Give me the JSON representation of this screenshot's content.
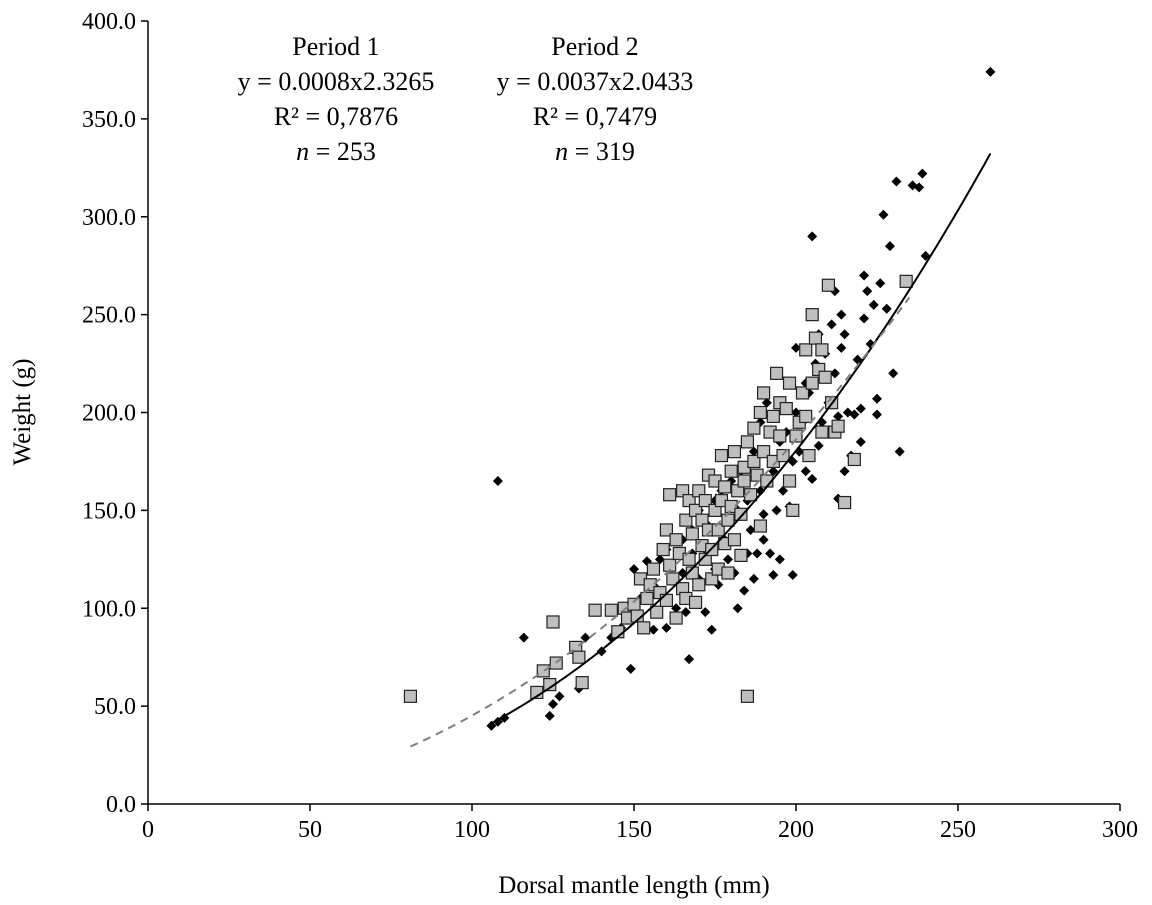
{
  "chart_data": {
    "type": "scatter",
    "title": "",
    "xlabel": "Dorsal mantle length (mm)",
    "ylabel": "Weight (g)",
    "xlim": [
      0,
      300
    ],
    "ylim": [
      0,
      400
    ],
    "x_ticks": [
      "0",
      "50",
      "100",
      "150",
      "200",
      "250",
      "300"
    ],
    "y_ticks": [
      "0.0",
      "50.0",
      "100.0",
      "150.0",
      "200.0",
      "250.0",
      "300.0",
      "350.0",
      "400.0"
    ],
    "grid": false,
    "legend": "none",
    "annotations": [
      {
        "id": "period1",
        "lines": [
          "Period 1",
          "y = 0.0008x2.3265",
          "R² = 0,7876",
          "n = 253"
        ]
      },
      {
        "id": "period2",
        "lines": [
          "Period 2",
          "y = 0.0037x2.0433",
          "R² = 0,7479",
          "n = 319"
        ]
      }
    ],
    "series": [
      {
        "marker": "diamond",
        "color": "#000000",
        "trend": {
          "a": 0.0008,
          "b": 2.3265,
          "x_range": [
            106,
            260
          ],
          "style": "solid",
          "color": "#000000"
        },
        "points": [
          [
            108,
            165
          ],
          [
            106,
            40
          ],
          [
            108,
            42
          ],
          [
            110,
            44
          ],
          [
            116,
            85
          ],
          [
            124,
            45
          ],
          [
            125,
            51
          ],
          [
            127,
            55
          ],
          [
            133,
            59
          ],
          [
            135,
            85
          ],
          [
            140,
            78
          ],
          [
            143,
            85
          ],
          [
            146,
            90
          ],
          [
            148,
            95
          ],
          [
            149,
            69
          ],
          [
            150,
            120
          ],
          [
            152,
            105
          ],
          [
            154,
            124
          ],
          [
            156,
            89
          ],
          [
            157,
            110
          ],
          [
            158,
            125
          ],
          [
            160,
            90
          ],
          [
            160,
            130
          ],
          [
            162,
            115
          ],
          [
            163,
            100
          ],
          [
            165,
            118
          ],
          [
            165,
            135
          ],
          [
            166,
            98
          ],
          [
            167,
            74
          ],
          [
            168,
            128
          ],
          [
            168,
            140
          ],
          [
            170,
            115
          ],
          [
            170,
            150
          ],
          [
            172,
            130
          ],
          [
            172,
            98
          ],
          [
            173,
            142
          ],
          [
            174,
            89
          ],
          [
            175,
            120
          ],
          [
            175,
            155
          ],
          [
            176,
            112
          ],
          [
            177,
            160
          ],
          [
            178,
            135
          ],
          [
            179,
            125
          ],
          [
            180,
            145
          ],
          [
            180,
            165
          ],
          [
            181,
            118
          ],
          [
            182,
            100
          ],
          [
            182,
            150
          ],
          [
            183,
            170
          ],
          [
            184,
            109
          ],
          [
            185,
            128
          ],
          [
            185,
            155
          ],
          [
            186,
            140
          ],
          [
            187,
            115
          ],
          [
            187,
            180
          ],
          [
            188,
            128
          ],
          [
            189,
            160
          ],
          [
            189,
            195
          ],
          [
            190,
            148
          ],
          [
            190,
            135
          ],
          [
            191,
            205
          ],
          [
            192,
            128
          ],
          [
            193,
            170
          ],
          [
            193,
            117
          ],
          [
            194,
            150
          ],
          [
            195,
            185
          ],
          [
            195,
            125
          ],
          [
            196,
            160
          ],
          [
            197,
            190
          ],
          [
            198,
            152
          ],
          [
            199,
            117
          ],
          [
            199,
            175
          ],
          [
            200,
            200
          ],
          [
            200,
            233
          ],
          [
            201,
            180
          ],
          [
            202,
            195
          ],
          [
            203,
            170
          ],
          [
            203,
            215
          ],
          [
            204,
            210
          ],
          [
            205,
            166
          ],
          [
            205,
            290
          ],
          [
            206,
            225
          ],
          [
            207,
            240
          ],
          [
            207,
            183
          ],
          [
            208,
            195
          ],
          [
            209,
            230
          ],
          [
            210,
            205
          ],
          [
            211,
            245
          ],
          [
            212,
            220
          ],
          [
            212,
            262
          ],
          [
            213,
            156
          ],
          [
            213,
            198
          ],
          [
            214,
            250
          ],
          [
            214,
            233
          ],
          [
            215,
            240
          ],
          [
            215,
            170
          ],
          [
            216,
            200
          ],
          [
            217,
            178
          ],
          [
            218,
            199
          ],
          [
            219,
            227
          ],
          [
            220,
            185
          ],
          [
            220,
            202
          ],
          [
            221,
            270
          ],
          [
            221,
            248
          ],
          [
            222,
            262
          ],
          [
            223,
            235
          ],
          [
            224,
            255
          ],
          [
            225,
            207
          ],
          [
            225,
            199
          ],
          [
            226,
            266
          ],
          [
            227,
            301
          ],
          [
            228,
            253
          ],
          [
            229,
            285
          ],
          [
            230,
            220
          ],
          [
            231,
            318
          ],
          [
            232,
            180
          ],
          [
            236,
            316
          ],
          [
            238,
            315
          ],
          [
            239,
            322
          ],
          [
            240,
            280
          ],
          [
            260,
            374
          ]
        ]
      },
      {
        "marker": "square",
        "color": "#bfbfbf",
        "trend": {
          "a": 0.0037,
          "b": 2.0433,
          "x_range": [
            81,
            235
          ],
          "style": "dashed",
          "color": "#7f7f7f"
        },
        "points": [
          [
            81,
            55
          ],
          [
            120,
            57
          ],
          [
            122,
            68
          ],
          [
            124,
            61
          ],
          [
            125,
            93
          ],
          [
            126,
            72
          ],
          [
            132,
            80
          ],
          [
            133,
            75
          ],
          [
            134,
            62
          ],
          [
            138,
            99
          ],
          [
            143,
            99
          ],
          [
            145,
            88
          ],
          [
            147,
            100
          ],
          [
            148,
            95
          ],
          [
            150,
            102
          ],
          [
            151,
            96
          ],
          [
            152,
            115
          ],
          [
            153,
            90
          ],
          [
            154,
            105
          ],
          [
            155,
            112
          ],
          [
            156,
            120
          ],
          [
            157,
            98
          ],
          [
            158,
            108
          ],
          [
            159,
            130
          ],
          [
            160,
            140
          ],
          [
            160,
            104
          ],
          [
            161,
            158
          ],
          [
            161,
            122
          ],
          [
            162,
            115
          ],
          [
            163,
            95
          ],
          [
            163,
            135
          ],
          [
            164,
            128
          ],
          [
            165,
            110
          ],
          [
            165,
            160
          ],
          [
            166,
            105
          ],
          [
            166,
            145
          ],
          [
            167,
            125
          ],
          [
            167,
            155
          ],
          [
            168,
            118
          ],
          [
            168,
            138
          ],
          [
            169,
            103
          ],
          [
            169,
            150
          ],
          [
            170,
            160
          ],
          [
            170,
            112
          ],
          [
            171,
            132
          ],
          [
            171,
            145
          ],
          [
            172,
            125
          ],
          [
            172,
            155
          ],
          [
            173,
            168
          ],
          [
            173,
            140
          ],
          [
            174,
            115
          ],
          [
            174,
            130
          ],
          [
            175,
            150
          ],
          [
            175,
            165
          ],
          [
            176,
            120
          ],
          [
            176,
            140
          ],
          [
            177,
            178
          ],
          [
            177,
            155
          ],
          [
            178,
            133
          ],
          [
            178,
            162
          ],
          [
            179,
            145
          ],
          [
            179,
            118
          ],
          [
            180,
            170
          ],
          [
            180,
            152
          ],
          [
            181,
            135
          ],
          [
            181,
            180
          ],
          [
            182,
            160
          ],
          [
            183,
            148
          ],
          [
            183,
            127
          ],
          [
            184,
            172
          ],
          [
            184,
            165
          ],
          [
            185,
            185
          ],
          [
            185,
            55
          ],
          [
            186,
            158
          ],
          [
            187,
            192
          ],
          [
            187,
            175
          ],
          [
            188,
            168
          ],
          [
            189,
            142
          ],
          [
            189,
            200
          ],
          [
            190,
            180
          ],
          [
            190,
            210
          ],
          [
            191,
            165
          ],
          [
            192,
            190
          ],
          [
            193,
            175
          ],
          [
            193,
            198
          ],
          [
            194,
            220
          ],
          [
            195,
            205
          ],
          [
            195,
            188
          ],
          [
            196,
            178
          ],
          [
            197,
            202
          ],
          [
            198,
            215
          ],
          [
            198,
            165
          ],
          [
            199,
            150
          ],
          [
            200,
            188
          ],
          [
            201,
            195
          ],
          [
            202,
            210
          ],
          [
            203,
            232
          ],
          [
            203,
            198
          ],
          [
            204,
            178
          ],
          [
            205,
            215
          ],
          [
            205,
            250
          ],
          [
            206,
            238
          ],
          [
            207,
            222
          ],
          [
            208,
            190
          ],
          [
            208,
            232
          ],
          [
            209,
            218
          ],
          [
            210,
            265
          ],
          [
            211,
            205
          ],
          [
            212,
            190
          ],
          [
            213,
            193
          ],
          [
            215,
            154
          ],
          [
            218,
            176
          ],
          [
            234,
            267
          ]
        ]
      }
    ]
  }
}
